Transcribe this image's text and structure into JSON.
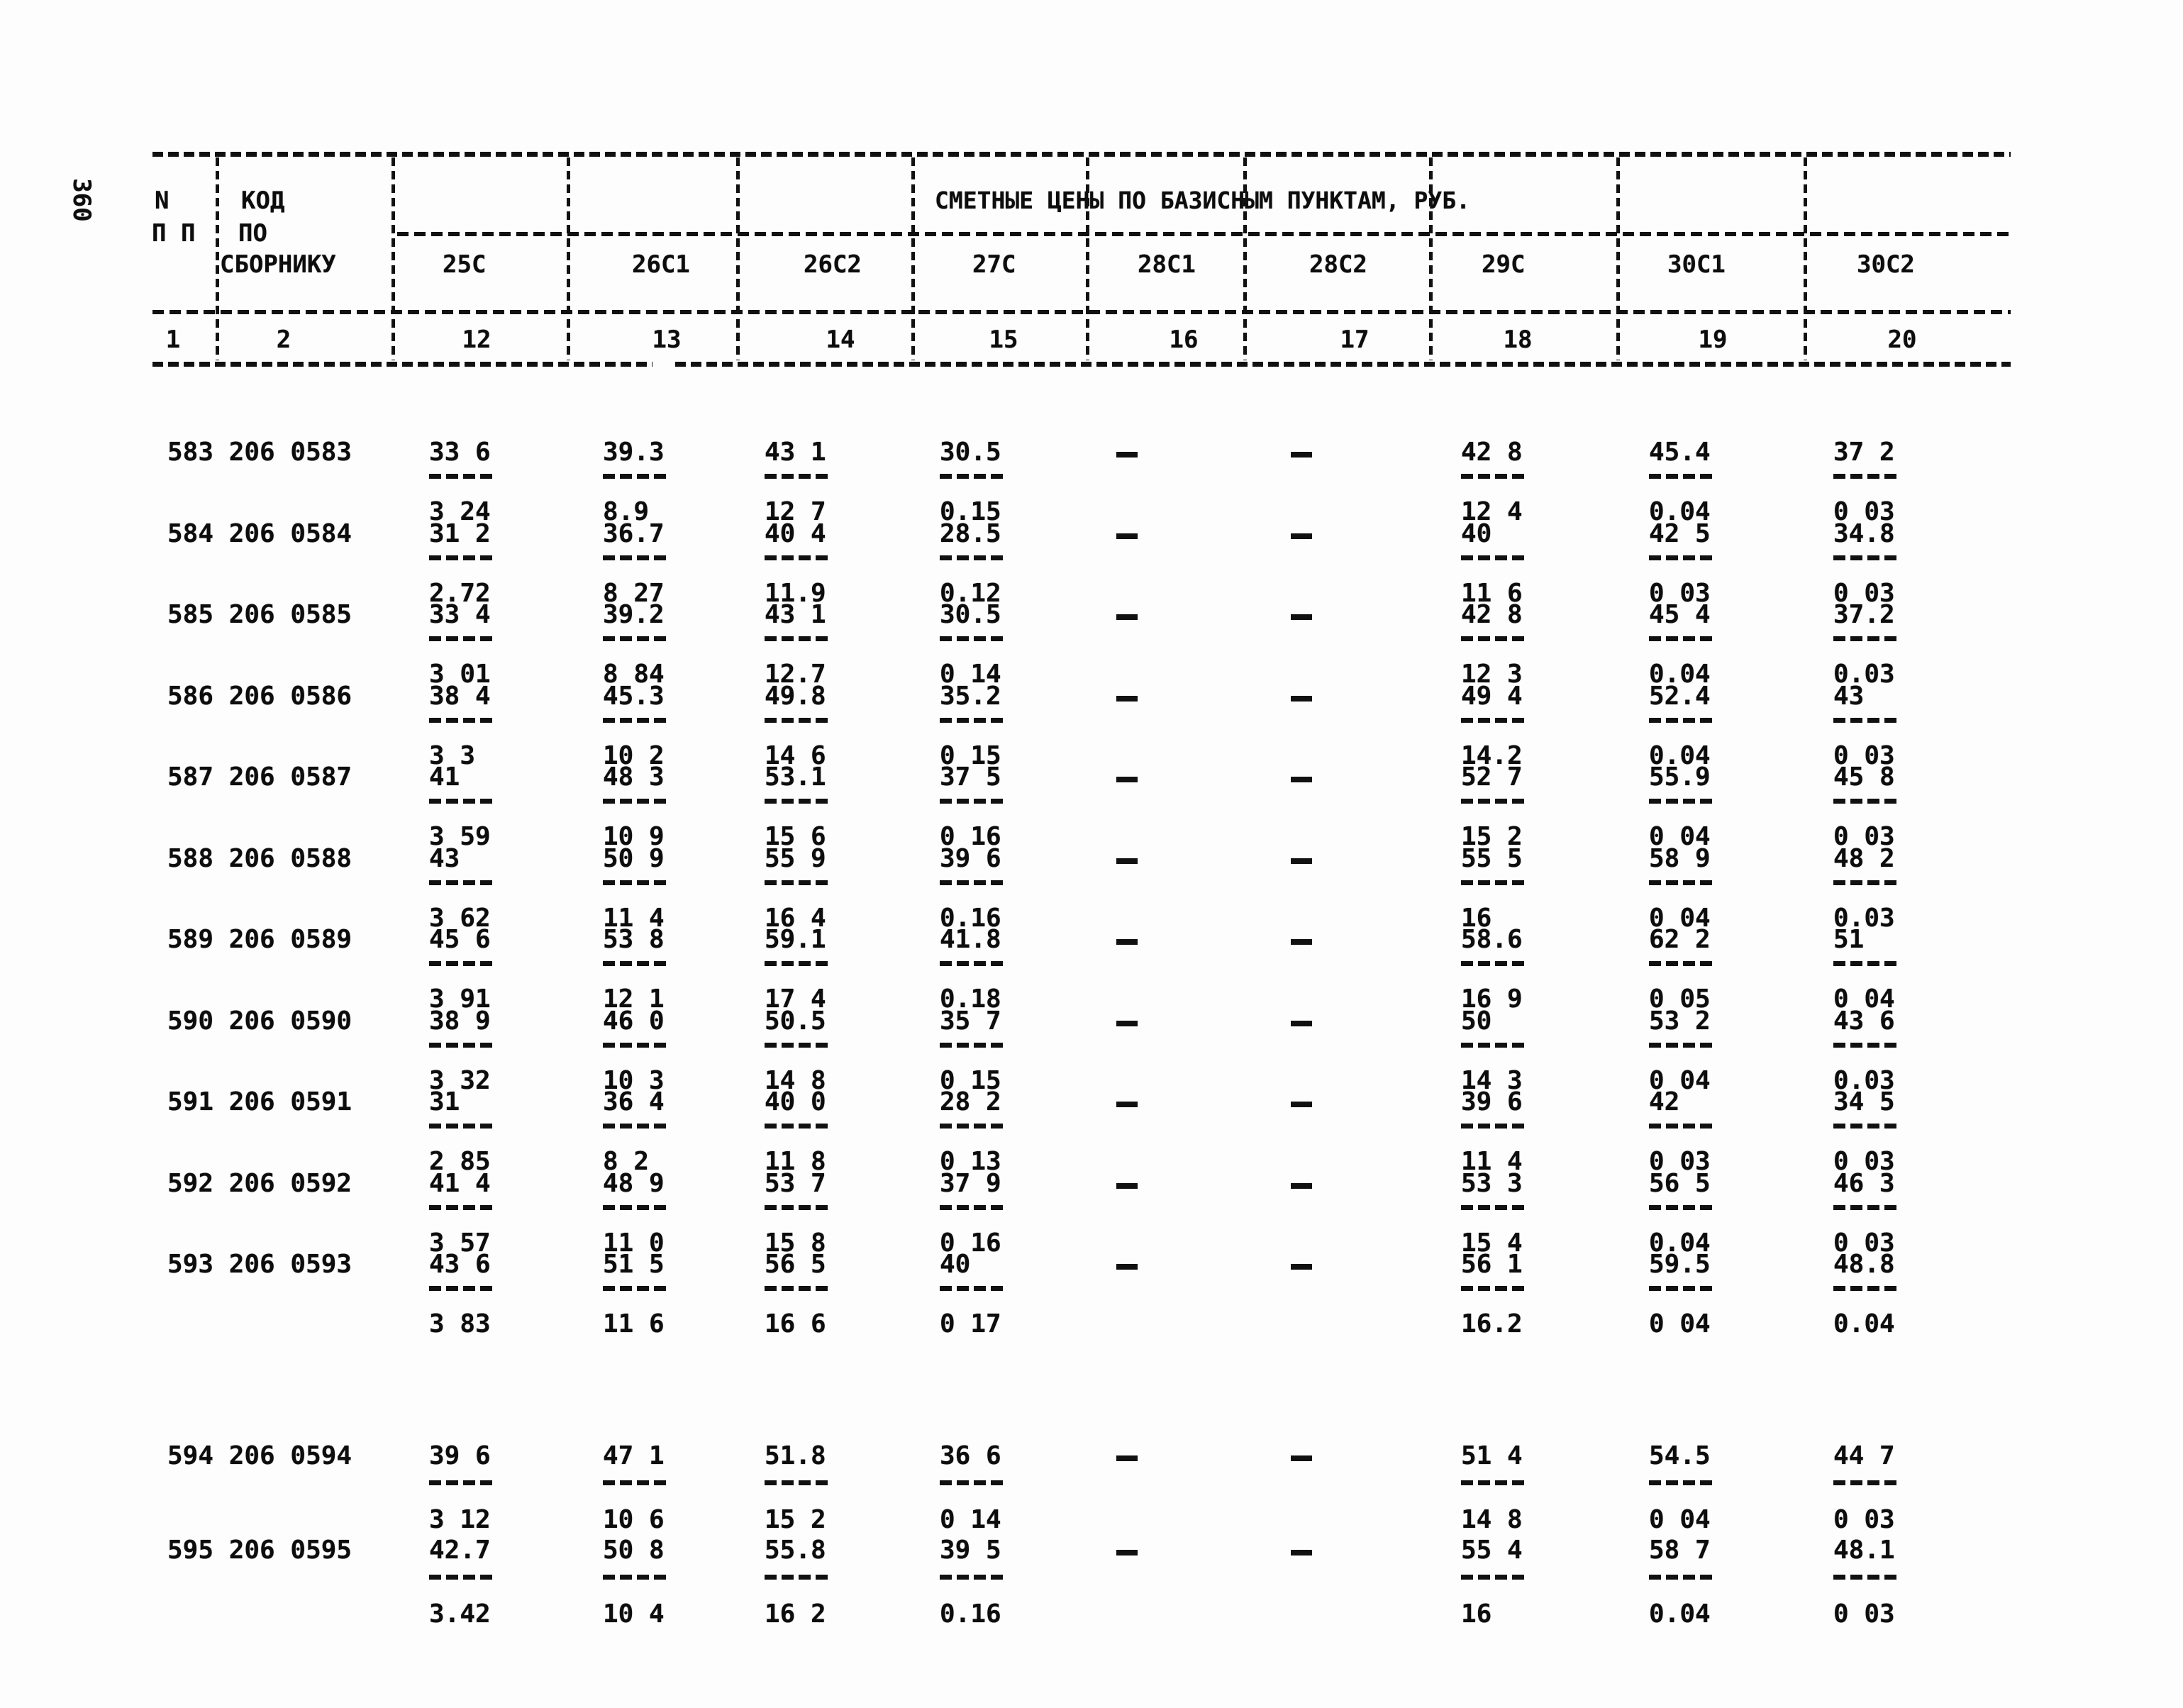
{
  "page_number": "360",
  "table": {
    "title": "СМЕТНЫЕ ЦЕНЫ ПО БАЗИСНЫМ ПУНКТАМ, РУБ.",
    "col_n_line1": "N",
    "col_n_line2": "П П",
    "col_code_lines": [
      "КОД",
      "ПО",
      "СБОРНИКУ"
    ],
    "price_columns": [
      "25С",
      "26С1",
      "26С2",
      "27С",
      "28С1",
      "28С2",
      "29С",
      "30С1",
      "30С2"
    ],
    "column_numbers": [
      "1",
      "2",
      "12",
      "13",
      "14",
      "15",
      "16",
      "17",
      "18",
      "19",
      "20"
    ],
    "rows": [
      {
        "code": "583 206 0583",
        "cells": [
          {
            "num": "33 6",
            "den": "3 24"
          },
          {
            "num": "39.3",
            "den": "8.9"
          },
          {
            "num": "43 1",
            "den": "12 7"
          },
          {
            "num": "30.5",
            "den": "0.15"
          },
          {
            "num": "-",
            "den": ""
          },
          {
            "num": "-",
            "den": ""
          },
          {
            "num": "42 8",
            "den": "12 4"
          },
          {
            "num": "45.4",
            "den": "0.04"
          },
          {
            "num": "37 2",
            "den": "0 03"
          }
        ]
      },
      {
        "code": "584 206 0584",
        "cells": [
          {
            "num": "31 2",
            "den": "2.72"
          },
          {
            "num": "36.7",
            "den": "8 27"
          },
          {
            "num": "40 4",
            "den": "11.9"
          },
          {
            "num": "28.5",
            "den": "0.12"
          },
          {
            "num": "-",
            "den": ""
          },
          {
            "num": "-",
            "den": ""
          },
          {
            "num": "40",
            "den": "11 6"
          },
          {
            "num": "42 5",
            "den": "0 03"
          },
          {
            "num": "34.8",
            "den": "0 03"
          }
        ]
      },
      {
        "code": "585 206 0585",
        "cells": [
          {
            "num": "33 4",
            "den": "3 01"
          },
          {
            "num": "39.2",
            "den": "8 84"
          },
          {
            "num": "43 1",
            "den": "12.7"
          },
          {
            "num": "30.5",
            "den": "0 14"
          },
          {
            "num": "-",
            "den": ""
          },
          {
            "num": "-",
            "den": ""
          },
          {
            "num": "42 8",
            "den": "12 3"
          },
          {
            "num": "45 4",
            "den": "0.04"
          },
          {
            "num": "37.2",
            "den": "0.03"
          }
        ]
      },
      {
        "code": "586 206 0586",
        "cells": [
          {
            "num": "38 4",
            "den": "3 3"
          },
          {
            "num": "45.3",
            "den": "10 2"
          },
          {
            "num": "49.8",
            "den": "14 6"
          },
          {
            "num": "35.2",
            "den": "0 15"
          },
          {
            "num": "-",
            "den": ""
          },
          {
            "num": "-",
            "den": ""
          },
          {
            "num": "49 4",
            "den": "14.2"
          },
          {
            "num": "52.4",
            "den": "0.04"
          },
          {
            "num": "43",
            "den": "0 03"
          }
        ]
      },
      {
        "code": "587 206 0587",
        "cells": [
          {
            "num": "41",
            "den": "3 59"
          },
          {
            "num": "48 3",
            "den": "10 9"
          },
          {
            "num": "53.1",
            "den": "15 6"
          },
          {
            "num": "37 5",
            "den": "0 16"
          },
          {
            "num": "-",
            "den": ""
          },
          {
            "num": "-",
            "den": ""
          },
          {
            "num": "52 7",
            "den": "15 2"
          },
          {
            "num": "55.9",
            "den": "0 04"
          },
          {
            "num": "45 8",
            "den": "0 03"
          }
        ]
      },
      {
        "code": "588 206 0588",
        "cells": [
          {
            "num": "43",
            "den": "3 62"
          },
          {
            "num": "50 9",
            "den": "11 4"
          },
          {
            "num": "55 9",
            "den": "16 4"
          },
          {
            "num": "39 6",
            "den": "0.16"
          },
          {
            "num": "-",
            "den": ""
          },
          {
            "num": "-",
            "den": ""
          },
          {
            "num": "55 5",
            "den": "16"
          },
          {
            "num": "58 9",
            "den": "0 04"
          },
          {
            "num": "48 2",
            "den": "0.03"
          }
        ]
      },
      {
        "code": "589 206 0589",
        "cells": [
          {
            "num": "45 6",
            "den": "3 91"
          },
          {
            "num": "53 8",
            "den": "12 1"
          },
          {
            "num": "59.1",
            "den": "17 4"
          },
          {
            "num": "41.8",
            "den": "0.18"
          },
          {
            "num": "-",
            "den": ""
          },
          {
            "num": "-",
            "den": ""
          },
          {
            "num": "58.6",
            "den": "16 9"
          },
          {
            "num": "62 2",
            "den": "0 05"
          },
          {
            "num": "51",
            "den": "0 04"
          }
        ]
      },
      {
        "code": "590 206 0590",
        "cells": [
          {
            "num": "38 9",
            "den": "3 32"
          },
          {
            "num": "46 0",
            "den": "10 3"
          },
          {
            "num": "50.5",
            "den": "14 8"
          },
          {
            "num": "35 7",
            "den": "0 15"
          },
          {
            "num": "-",
            "den": ""
          },
          {
            "num": "-",
            "den": ""
          },
          {
            "num": "50",
            "den": "14 3"
          },
          {
            "num": "53 2",
            "den": "0 04"
          },
          {
            "num": "43 6",
            "den": "0.03"
          }
        ]
      },
      {
        "code": "591 206 0591",
        "cells": [
          {
            "num": "31",
            "den": "2 85"
          },
          {
            "num": "36 4",
            "den": "8 2"
          },
          {
            "num": "40 0",
            "den": "11 8"
          },
          {
            "num": "28 2",
            "den": "0 13"
          },
          {
            "num": "-",
            "den": ""
          },
          {
            "num": "-",
            "den": ""
          },
          {
            "num": "39 6",
            "den": "11 4"
          },
          {
            "num": "42",
            "den": "0 03"
          },
          {
            "num": "34 5",
            "den": "0 03"
          }
        ]
      },
      {
        "code": "592 206 0592",
        "cells": [
          {
            "num": "41 4",
            "den": "3 57"
          },
          {
            "num": "48 9",
            "den": "11 0"
          },
          {
            "num": "53 7",
            "den": "15 8"
          },
          {
            "num": "37 9",
            "den": "0 16"
          },
          {
            "num": "-",
            "den": ""
          },
          {
            "num": "-",
            "den": ""
          },
          {
            "num": "53 3",
            "den": "15 4"
          },
          {
            "num": "56 5",
            "den": "0.04"
          },
          {
            "num": "46 3",
            "den": "0 03"
          }
        ]
      },
      {
        "code": "593 206 0593",
        "cells": [
          {
            "num": "43 6",
            "den": "3 83"
          },
          {
            "num": "51 5",
            "den": "11 6"
          },
          {
            "num": "56 5",
            "den": "16 6"
          },
          {
            "num": "40",
            "den": "0 17"
          },
          {
            "num": "-",
            "den": ""
          },
          {
            "num": "-",
            "den": ""
          },
          {
            "num": "56 1",
            "den": "16.2"
          },
          {
            "num": "59.5",
            "den": "0 04"
          },
          {
            "num": "48.8",
            "den": "0.04"
          }
        ]
      },
      {
        "code": "594 206 0594",
        "cells": [
          {
            "num": "39 6",
            "den": "3 12"
          },
          {
            "num": "47 1",
            "den": "10 6"
          },
          {
            "num": "51.8",
            "den": "15 2"
          },
          {
            "num": "36 6",
            "den": "0 14"
          },
          {
            "num": "-",
            "den": ""
          },
          {
            "num": "-",
            "den": ""
          },
          {
            "num": "51 4",
            "den": "14 8"
          },
          {
            "num": "54.5",
            "den": "0 04"
          },
          {
            "num": "44 7",
            "den": "0 03"
          }
        ]
      },
      {
        "code": "595 206 0595",
        "cells": [
          {
            "num": "42.7",
            "den": "3.42"
          },
          {
            "num": "50 8",
            "den": "10 4"
          },
          {
            "num": "55.8",
            "den": "16 2"
          },
          {
            "num": "39 5",
            "den": "0.16"
          },
          {
            "num": "-",
            "den": ""
          },
          {
            "num": "-",
            "den": ""
          },
          {
            "num": "55 4",
            "den": "16"
          },
          {
            "num": "58 7",
            "den": "0.04"
          },
          {
            "num": "48.1",
            "den": "0 03"
          }
        ]
      }
    ]
  }
}
